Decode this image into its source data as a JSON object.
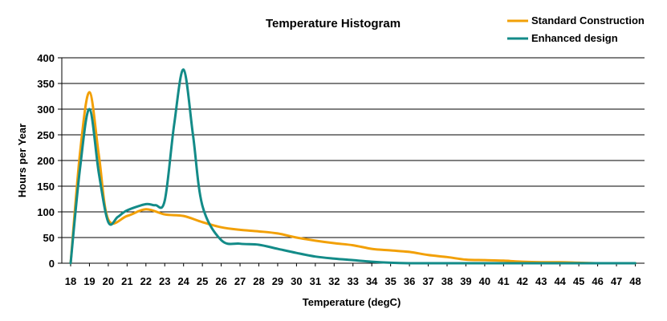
{
  "chart_data": {
    "type": "line",
    "title": "Temperature Histogram",
    "xlabel": "Temperature (degC)",
    "ylabel": "Hours per Year",
    "ylim": [
      0,
      400
    ],
    "yticks": [
      0,
      50,
      100,
      150,
      200,
      250,
      300,
      350,
      400
    ],
    "xlim": [
      18,
      48
    ],
    "xticks": [
      18,
      19,
      20,
      21,
      22,
      23,
      24,
      25,
      26,
      27,
      28,
      29,
      30,
      31,
      32,
      33,
      34,
      35,
      36,
      37,
      38,
      39,
      40,
      41,
      42,
      43,
      44,
      45,
      46,
      47,
      48
    ],
    "grid": true,
    "legend_position": "top-right",
    "series": [
      {
        "name": "Standard Construction",
        "color": "#f2a007",
        "x": [
          18,
          18.5,
          19,
          19.5,
          20,
          21,
          22,
          23,
          24,
          25,
          26,
          27,
          28,
          29,
          30,
          31,
          32,
          33,
          34,
          35,
          36,
          37,
          38,
          39,
          40,
          41,
          42,
          43,
          44,
          45,
          46,
          47,
          48
        ],
        "values": [
          0,
          215,
          333,
          210,
          85,
          92,
          105,
          95,
          92,
          80,
          70,
          65,
          62,
          58,
          50,
          44,
          39,
          35,
          28,
          25,
          22,
          16,
          12,
          7,
          6,
          5,
          3,
          2,
          2,
          1,
          0,
          0,
          0
        ]
      },
      {
        "name": "Enhanced design",
        "color": "#138b88",
        "x": [
          18,
          18.5,
          19,
          19.5,
          20,
          20.5,
          21,
          22,
          22.5,
          23,
          23.5,
          24,
          24.5,
          25,
          26,
          27,
          28,
          29,
          30,
          31,
          32,
          33,
          34,
          35,
          36,
          37,
          38,
          39,
          40,
          41,
          42,
          43,
          44,
          45,
          46,
          47,
          48
        ],
        "values": [
          0,
          185,
          300,
          175,
          80,
          90,
          103,
          115,
          113,
          122,
          270,
          377,
          250,
          112,
          45,
          38,
          36,
          28,
          20,
          13,
          9,
          6,
          3,
          1,
          0,
          0,
          0,
          0,
          0,
          0,
          0,
          0,
          0,
          0,
          0,
          0,
          0
        ]
      }
    ]
  }
}
